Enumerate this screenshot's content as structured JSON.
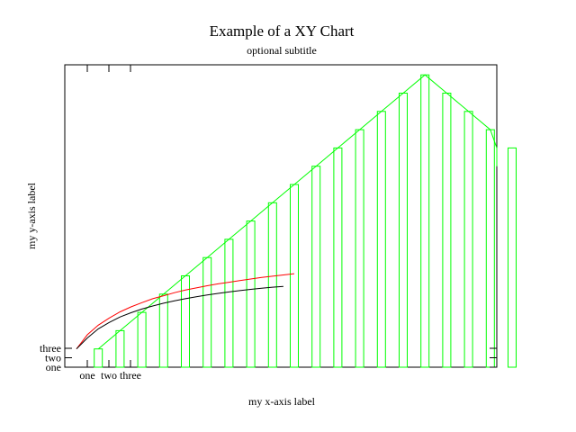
{
  "chart_data": {
    "type": "bar",
    "title": "Example of a XY Chart",
    "subtitle": "optional subtitle",
    "xlabel": "my x-axis label",
    "ylabel": "my y-axis label",
    "x_ticks": [
      "one",
      "two",
      "three"
    ],
    "y_ticks": [
      "one",
      "two",
      "three"
    ],
    "grid": false,
    "legend": "none",
    "series": [
      {
        "kind": "bar",
        "color": "#00ff00",
        "x": [
          1,
          2,
          3,
          4,
          5,
          6,
          7,
          8,
          9,
          10,
          11,
          12,
          13,
          14,
          15,
          16,
          17,
          18,
          19,
          20
        ],
        "values": [
          1,
          2,
          3,
          4,
          5,
          6,
          7,
          8,
          9,
          10,
          11,
          12,
          13,
          14,
          15,
          16,
          15,
          14,
          13,
          12
        ]
      },
      {
        "kind": "line",
        "color": "#00ff00",
        "x": [
          1,
          2,
          3,
          4,
          5,
          6,
          7,
          8,
          9,
          10,
          11,
          12,
          13,
          14,
          15,
          16,
          17,
          18,
          19,
          20,
          21
        ],
        "values": [
          1,
          2,
          3,
          4,
          5,
          6,
          7,
          8,
          9,
          10,
          11,
          12,
          13,
          14,
          15,
          16,
          15,
          14,
          13,
          12,
          11
        ]
      },
      {
        "kind": "line",
        "color": "#ff0000",
        "x": [
          0,
          0.5,
          1,
          1.5,
          2,
          2.5,
          3,
          3.5,
          4,
          4.5,
          5,
          5.5,
          6,
          6.5,
          7,
          7.5,
          8,
          8.5,
          9,
          9.5,
          10
        ],
        "values": [
          1,
          1.78,
          2.3,
          2.69,
          3.03,
          3.3,
          3.53,
          3.75,
          3.91,
          4.08,
          4.22,
          4.34,
          4.46,
          4.56,
          4.65,
          4.74,
          4.83,
          4.91,
          4.98,
          5.05,
          5.12
        ]
      },
      {
        "kind": "line",
        "color": "#000000",
        "x": [
          0,
          0.5,
          1,
          1.5,
          2,
          2.5,
          3,
          3.5,
          4,
          4.5,
          5,
          5.5,
          6,
          6.5,
          7,
          7.5,
          8,
          8.5,
          9,
          9.5
        ],
        "values": [
          1,
          1.6,
          2.1,
          2.45,
          2.75,
          2.98,
          3.18,
          3.35,
          3.5,
          3.63,
          3.75,
          3.85,
          3.95,
          4.04,
          4.12,
          4.19,
          4.26,
          4.32,
          4.38,
          4.42
        ]
      }
    ]
  }
}
